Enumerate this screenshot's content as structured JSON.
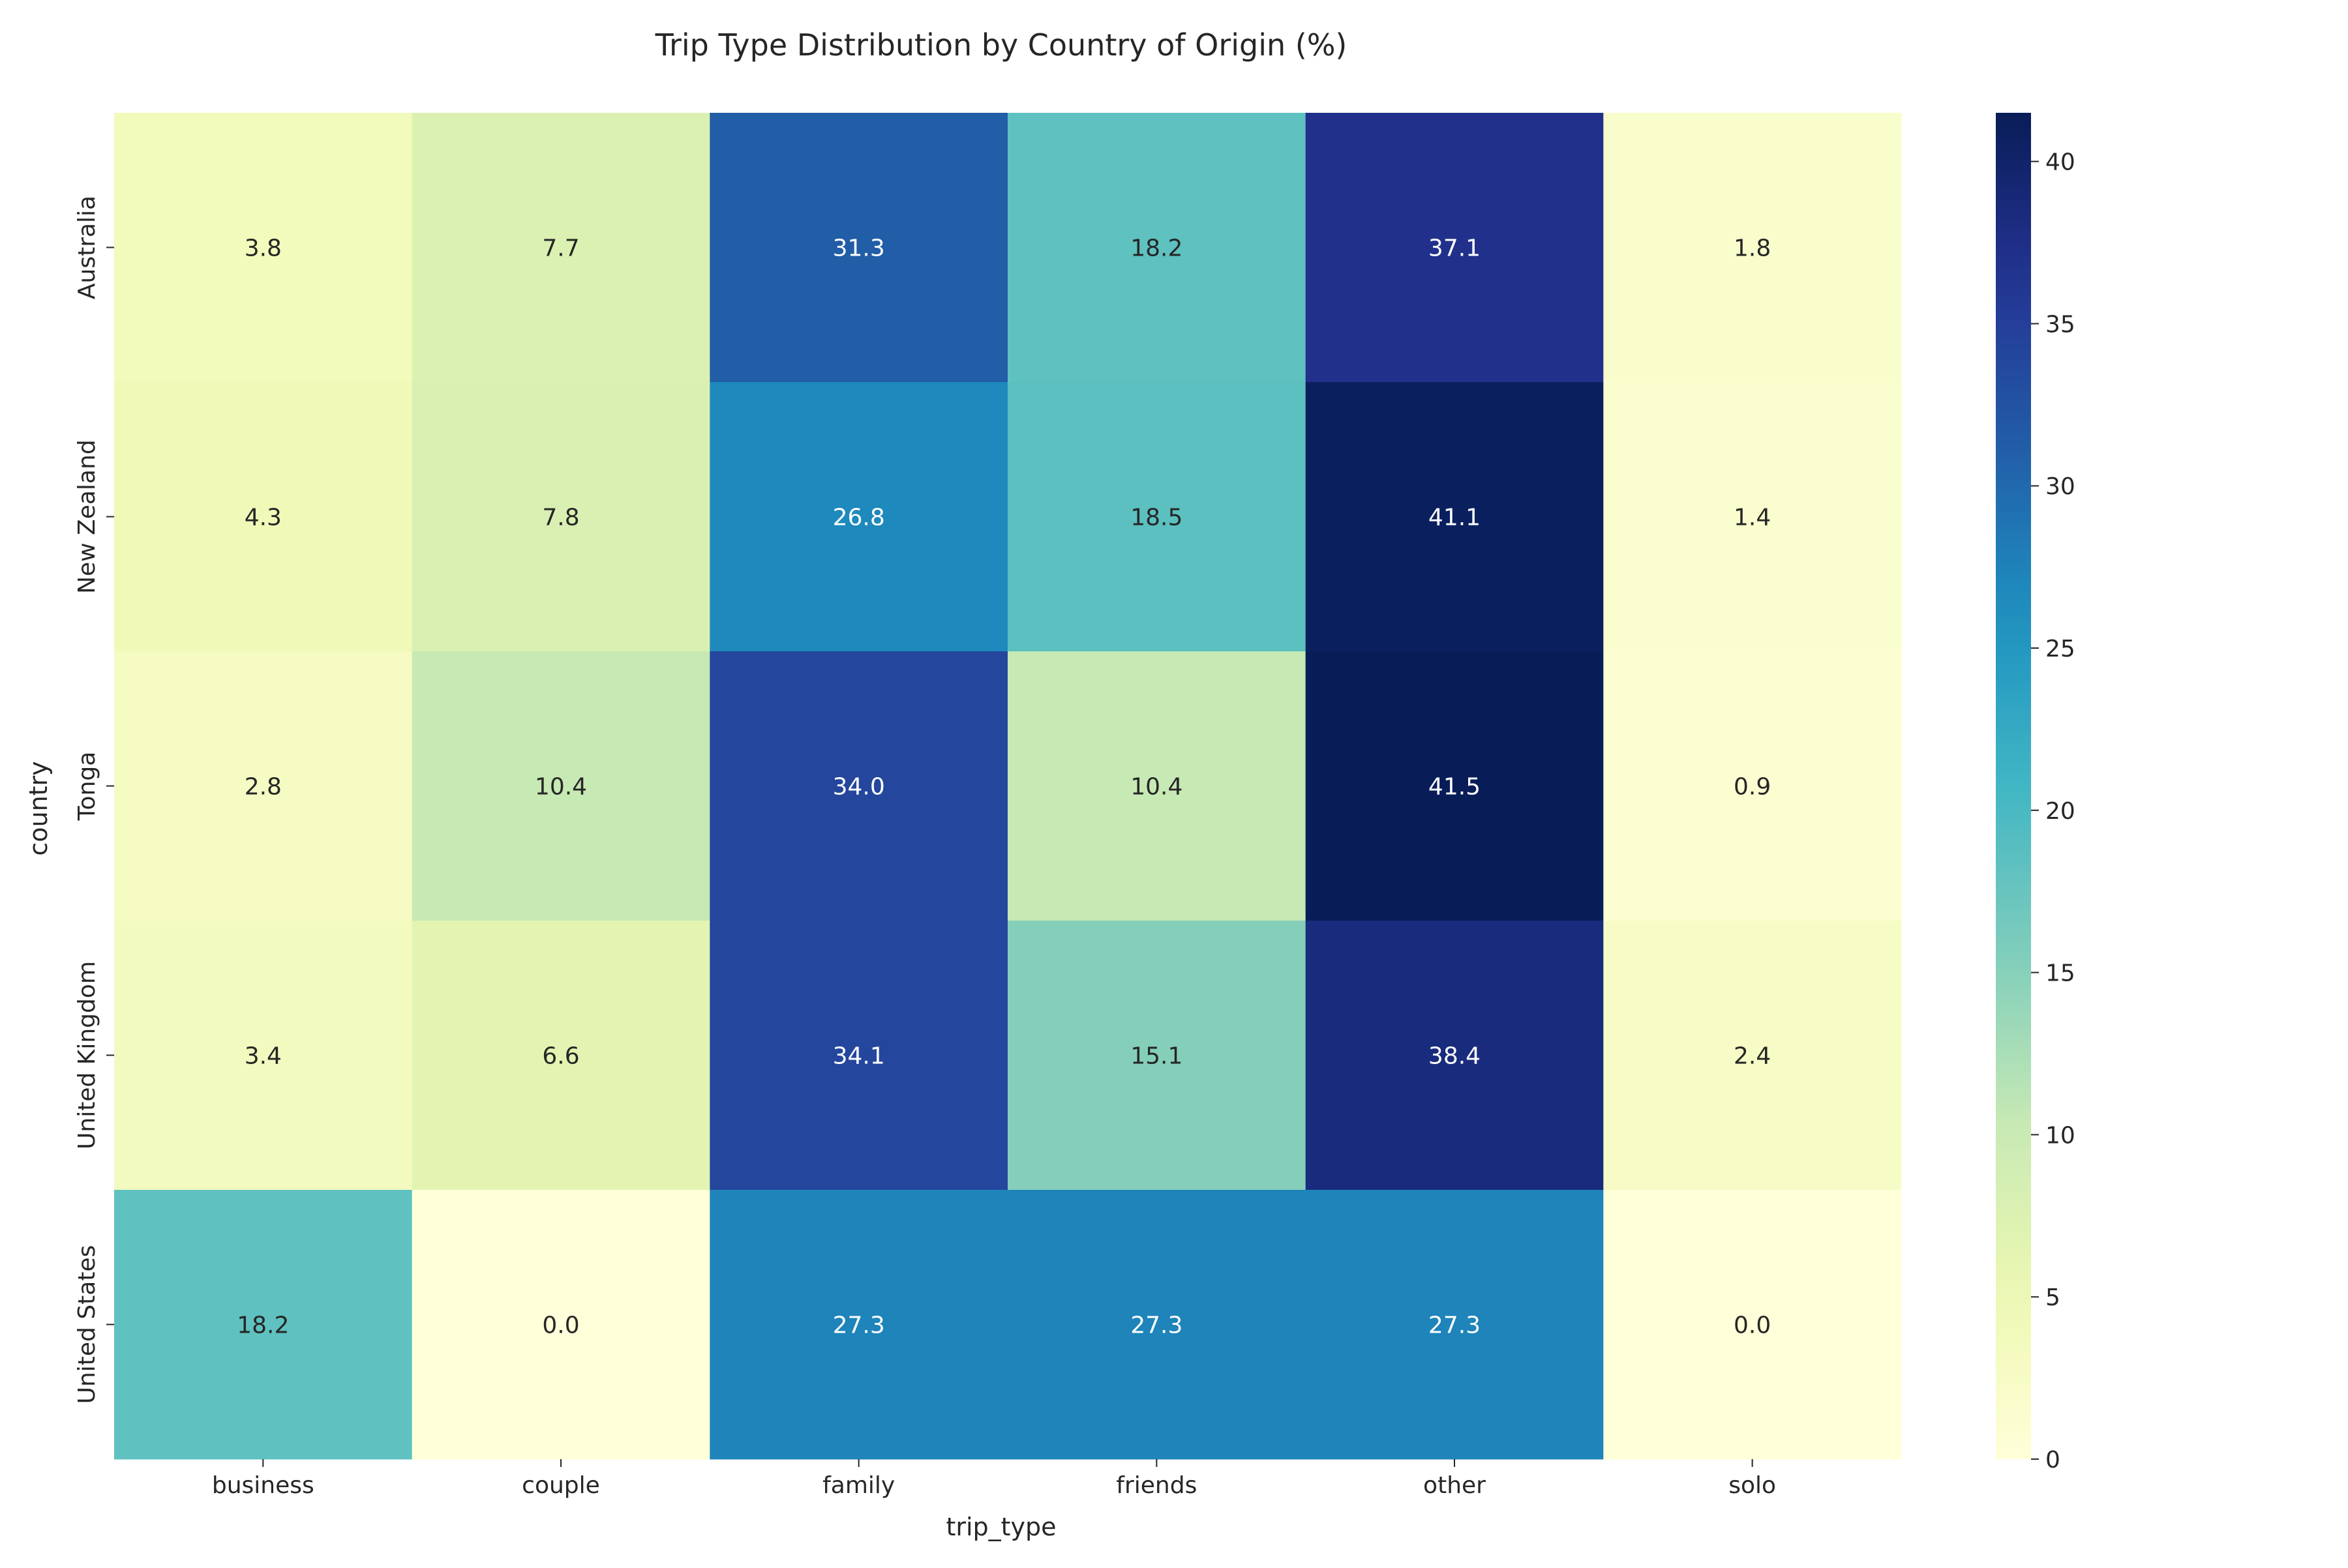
{
  "chart_data": {
    "type": "heatmap",
    "title": "Trip Type Distribution by Country of Origin (%)",
    "xlabel": "trip_type",
    "ylabel": "country",
    "x_categories": [
      "business",
      "couple",
      "family",
      "friends",
      "other",
      "solo"
    ],
    "y_categories": [
      "Australia",
      "New Zealand",
      "Tonga",
      "United Kingdom",
      "United States"
    ],
    "values": [
      [
        3.8,
        7.7,
        31.3,
        18.2,
        37.1,
        1.8
      ],
      [
        4.3,
        7.8,
        26.8,
        18.5,
        41.1,
        1.4
      ],
      [
        2.8,
        10.4,
        34.0,
        10.4,
        41.5,
        0.9
      ],
      [
        3.4,
        6.6,
        34.1,
        15.1,
        38.4,
        2.4
      ],
      [
        18.2,
        0.0,
        27.3,
        27.3,
        27.3,
        0.0
      ]
    ],
    "colormap": "YlGnBu",
    "colorbar": {
      "vmin": 0,
      "vmax": 41.5,
      "ticks": [
        0,
        5,
        10,
        15,
        20,
        25,
        30,
        35,
        40
      ]
    },
    "annotations": true,
    "grid": false
  }
}
